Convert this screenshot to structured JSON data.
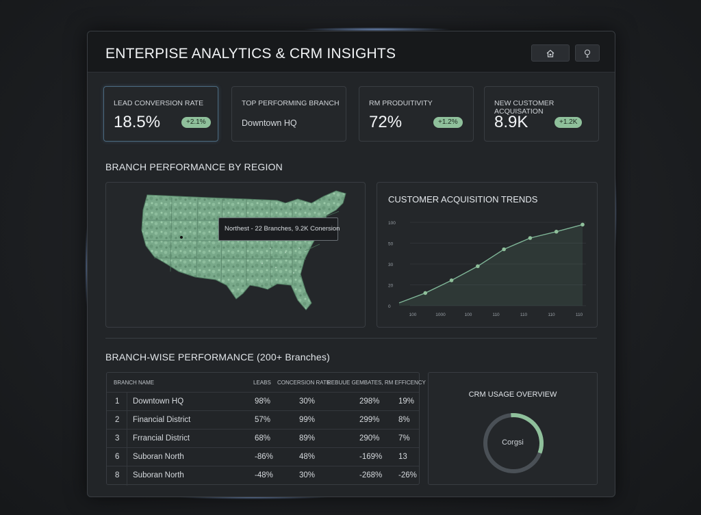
{
  "app": {
    "title": "ENTERPISE ANALYTICS & CRM INSIGHTS",
    "home_icon": "home-icon",
    "bulb_icon": "lightbulb-icon"
  },
  "kpis": [
    {
      "label": "LEAD CONVERSION RATE",
      "value": "18.5%",
      "badge": "+2.1%"
    },
    {
      "label": "TOP PERFORMING BRANCH",
      "text": "Downtown HQ"
    },
    {
      "label": "RM PRODUITIVITY",
      "value": "72%",
      "badge": "+1.2%"
    },
    {
      "label": "NEW CUSTOMER ACQUISATION",
      "value": "8.9K",
      "badge": "+1.2K"
    }
  ],
  "map_section": {
    "title": "BRANCH PERFORMANCE BY REGION",
    "tooltip": "Northest - 22 Branches, 9.2K Conersion",
    "map_color": "#79a98a"
  },
  "trend_chart": {
    "title": "CUSTOMER ACQUISITION TRENDS"
  },
  "chart_data": {
    "type": "area",
    "title": "CUSTOMER ACQUISITION TRENDS",
    "y_tick_labels": [
      "100",
      "50",
      "30",
      "20",
      "0"
    ],
    "x_tick_labels": [
      "100",
      "1000",
      "100",
      "110",
      "110",
      "110",
      "110"
    ],
    "series": [
      {
        "values": [
          4,
          18,
          36,
          56,
          80,
          96,
          105,
          115
        ]
      }
    ],
    "ylim": [
      0,
      128
    ],
    "grid": true,
    "line_color": "#7fb597"
  },
  "table_section": {
    "title": "BRANCH-WISE PERFORMANCE (200+ Branches)",
    "headers": [
      "BRANCH NAME",
      "LEABS",
      "CONCERSION RATE",
      "REBUUE GEMBATES, RM EFFICENCY"
    ],
    "rows": [
      {
        "num": "1",
        "name": "Downtown HQ",
        "leads": "98%",
        "conv": "30%",
        "rev": "298%",
        "eff": "19%"
      },
      {
        "num": "2",
        "name": "Financial District",
        "leads": "57%",
        "conv": "99%",
        "rev": "299%",
        "eff": "8%"
      },
      {
        "num": "3",
        "name": "Frrancial District",
        "leads": "68%",
        "conv": "89%",
        "rev": "290%",
        "eff": "7%"
      },
      {
        "num": "6",
        "name": "Suboran North",
        "leads": "-86%",
        "conv": "48%",
        "rev": "-169%",
        "eff": "13"
      },
      {
        "num": "8",
        "name": "Suboran North",
        "leads": "-48%",
        "conv": "30%",
        "rev": "-268%",
        "eff": "-26%"
      }
    ]
  },
  "crm_usage": {
    "title": "CRM USAGE OVERVIEW",
    "center_label": "Corgsi",
    "percent": 32,
    "accent": "#8fc09b",
    "track": "#4a5056"
  }
}
